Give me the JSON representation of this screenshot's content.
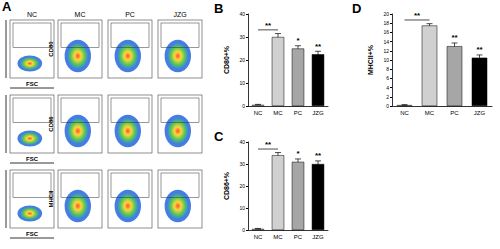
{
  "panels": {
    "panel": "A",
    "columns": [
      "NC",
      "MC",
      "PC",
      "JZG"
    ],
    "rows": [
      {
        "y_label": "CD80",
        "x_label": "FSC"
      },
      {
        "y_label": "CD86",
        "x_label": "FSC"
      },
      {
        "y_label": "MHCII",
        "x_label": "FSC"
      }
    ]
  },
  "chart_data": [
    {
      "type": "bar",
      "panel": "B",
      "y_label": "CD80+%",
      "categories": [
        "NC",
        "MC",
        "PC",
        "JZG"
      ],
      "values": [
        0.5,
        30,
        25,
        22.5
      ],
      "errors": [
        0.2,
        1.5,
        1.2,
        1.3
      ],
      "colors": [
        "#ffffff",
        "#d0d0d0",
        "#a6a6a6",
        "#000000"
      ],
      "ylim": [
        0,
        40
      ],
      "yticks": [
        0,
        10,
        20,
        30,
        40
      ],
      "grid": false,
      "annotations": [
        {
          "from": "NC",
          "to": "MC",
          "text": "**"
        },
        {
          "category": "PC",
          "text": "*"
        },
        {
          "category": "JZG",
          "text": "**"
        }
      ]
    },
    {
      "type": "bar",
      "panel": "C",
      "y_label": "CD86+%",
      "categories": [
        "NC",
        "MC",
        "PC",
        "JZG"
      ],
      "values": [
        0.5,
        34,
        31,
        30
      ],
      "errors": [
        0.2,
        1.2,
        1.3,
        1.4
      ],
      "colors": [
        "#ffffff",
        "#d0d0d0",
        "#a6a6a6",
        "#000000"
      ],
      "ylim": [
        0,
        40
      ],
      "yticks": [
        0,
        10,
        20,
        30,
        40
      ],
      "grid": false,
      "annotations": [
        {
          "from": "NC",
          "to": "MC",
          "text": "**"
        },
        {
          "category": "PC",
          "text": "*"
        },
        {
          "category": "JZG",
          "text": "**"
        }
      ]
    },
    {
      "type": "bar",
      "panel": "D",
      "y_label": "MHCII+%",
      "categories": [
        "NC",
        "MC",
        "PC",
        "JZG"
      ],
      "values": [
        0.2,
        17.5,
        13,
        10.5
      ],
      "errors": [
        0.1,
        0.4,
        0.7,
        0.6
      ],
      "colors": [
        "#ffffff",
        "#d0d0d0",
        "#a6a6a6",
        "#000000"
      ],
      "ylim": [
        0,
        20
      ],
      "yticks": [
        0,
        2,
        4,
        6,
        8,
        10,
        12,
        14,
        16,
        18,
        20
      ],
      "grid": false,
      "annotations": [
        {
          "from": "NC",
          "to": "MC",
          "text": "**"
        },
        {
          "category": "PC",
          "text": "**"
        },
        {
          "category": "JZG",
          "text": "**"
        }
      ]
    }
  ]
}
